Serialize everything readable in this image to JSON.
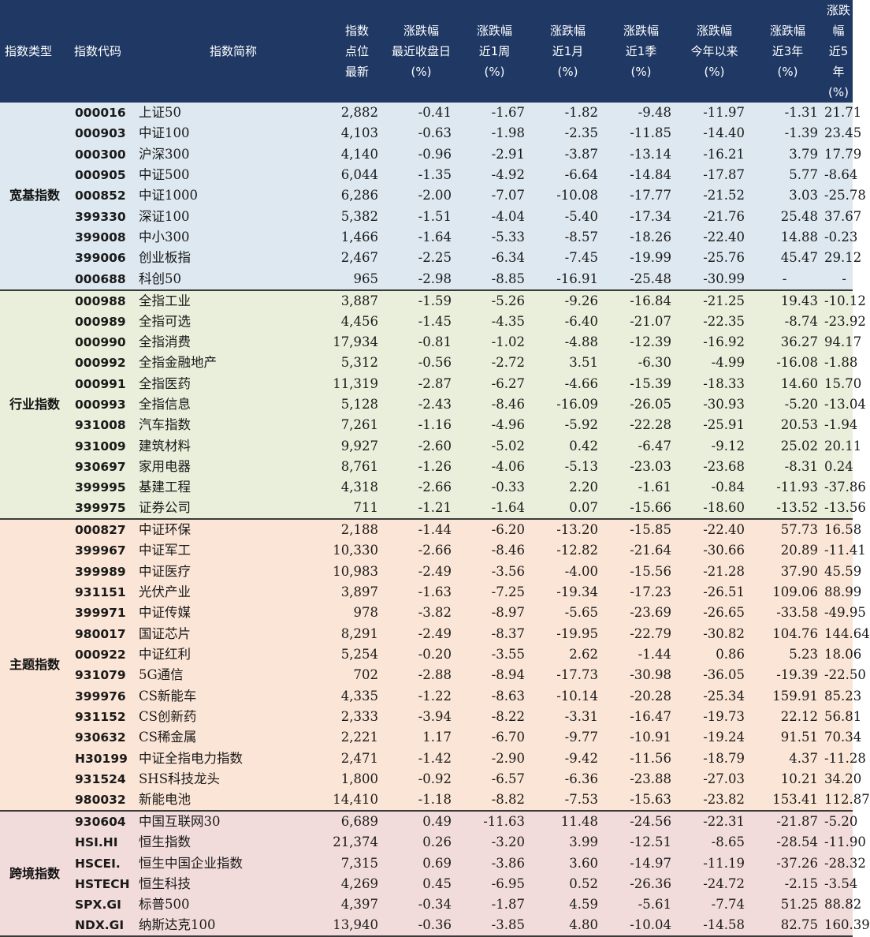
{
  "columns": [
    {
      "lines": [
        "指数类型"
      ]
    },
    {
      "lines": [
        "指数代码"
      ]
    },
    {
      "lines": [
        "指数简称"
      ]
    },
    {
      "lines": [
        "指数",
        "点位",
        "最新"
      ]
    },
    {
      "lines": [
        "涨跌幅",
        "最近收盘日",
        "(%)"
      ]
    },
    {
      "lines": [
        "涨跌幅",
        "近1周",
        "(%)"
      ]
    },
    {
      "lines": [
        "涨跌幅",
        "近1月",
        "(%)"
      ]
    },
    {
      "lines": [
        "涨跌幅",
        "近1季",
        "(%)"
      ]
    },
    {
      "lines": [
        "涨跌幅",
        "今年以来",
        "(%)"
      ]
    },
    {
      "lines": [
        "涨跌幅",
        "近3年",
        "(%)"
      ]
    },
    {
      "lines": [
        "涨跌幅",
        "近5年",
        "(%)"
      ]
    }
  ],
  "groups": [
    {
      "name": "宽基指数",
      "bg": "#dde8f0",
      "rows": [
        [
          "000016",
          "上证50",
          "2,882",
          "-0.41",
          "-1.67",
          "-1.82",
          "-9.48",
          "-11.97",
          "-1.31",
          "21.71"
        ],
        [
          "000903",
          "中证100",
          "4,103",
          "-0.63",
          "-1.98",
          "-2.35",
          "-11.85",
          "-14.40",
          "-1.39",
          "23.45"
        ],
        [
          "000300",
          "沪深300",
          "4,140",
          "-0.96",
          "-2.91",
          "-3.87",
          "-13.14",
          "-16.21",
          "3.79",
          "17.79"
        ],
        [
          "000905",
          "中证500",
          "6,044",
          "-1.35",
          "-4.92",
          "-6.64",
          "-14.84",
          "-17.87",
          "5.77",
          "-8.64"
        ],
        [
          "000852",
          "中证1000",
          "6,286",
          "-2.00",
          "-7.07",
          "-10.08",
          "-17.77",
          "-21.52",
          "3.03",
          "-25.78"
        ],
        [
          "399330",
          "深证100",
          "5,382",
          "-1.51",
          "-4.04",
          "-5.40",
          "-17.34",
          "-21.76",
          "25.48",
          "37.67"
        ],
        [
          "399008",
          "中小300",
          "1,466",
          "-1.64",
          "-5.33",
          "-8.57",
          "-18.26",
          "-22.40",
          "14.88",
          "-0.23"
        ],
        [
          "399006",
          "创业板指",
          "2,467",
          "-2.25",
          "-6.34",
          "-7.45",
          "-19.99",
          "-25.76",
          "45.47",
          "29.12"
        ],
        [
          "000688",
          "科创50",
          "965",
          "-2.98",
          "-8.85",
          "-16.91",
          "-25.48",
          "-30.99",
          "-",
          "-"
        ]
      ]
    },
    {
      "name": "行业指数",
      "bg": "#e9efdb",
      "rows": [
        [
          "000988",
          "全指工业",
          "3,887",
          "-1.59",
          "-5.26",
          "-9.26",
          "-16.84",
          "-21.25",
          "19.43",
          "-10.12"
        ],
        [
          "000989",
          "全指可选",
          "4,456",
          "-1.45",
          "-4.35",
          "-6.40",
          "-21.07",
          "-22.35",
          "-8.74",
          "-23.92"
        ],
        [
          "000990",
          "全指消费",
          "17,934",
          "-0.81",
          "-1.02",
          "-4.88",
          "-12.39",
          "-16.92",
          "36.27",
          "94.17"
        ],
        [
          "000992",
          "全指金融地产",
          "5,312",
          "-0.56",
          "-2.72",
          "3.51",
          "-6.30",
          "-4.99",
          "-16.08",
          "-1.88"
        ],
        [
          "000991",
          "全指医药",
          "11,319",
          "-2.87",
          "-6.27",
          "-4.66",
          "-15.39",
          "-18.33",
          "14.60",
          "15.70"
        ],
        [
          "000993",
          "全指信息",
          "5,128",
          "-2.43",
          "-8.46",
          "-16.09",
          "-26.05",
          "-30.93",
          "-5.20",
          "-13.04"
        ],
        [
          "931008",
          "汽车指数",
          "7,261",
          "-1.16",
          "-4.96",
          "-5.92",
          "-22.28",
          "-25.91",
          "20.53",
          "-1.94"
        ],
        [
          "931009",
          "建筑材料",
          "9,927",
          "-2.60",
          "-5.02",
          "0.42",
          "-6.47",
          "-9.12",
          "25.02",
          "20.11"
        ],
        [
          "930697",
          "家用电器",
          "8,761",
          "-1.26",
          "-4.06",
          "-5.13",
          "-23.03",
          "-23.68",
          "-8.31",
          "0.24"
        ],
        [
          "399995",
          "基建工程",
          "4,318",
          "-2.66",
          "-0.33",
          "2.20",
          "-1.61",
          "-0.84",
          "-11.93",
          "-37.86"
        ],
        [
          "399975",
          "证券公司",
          "711",
          "-1.21",
          "-1.64",
          "0.07",
          "-15.66",
          "-18.60",
          "-13.52",
          "-13.56"
        ]
      ]
    },
    {
      "name": "主题指数",
      "bg": "#fbe5d6",
      "rows": [
        [
          "000827",
          "中证环保",
          "2,188",
          "-1.44",
          "-6.20",
          "-13.20",
          "-15.85",
          "-22.40",
          "57.73",
          "16.58"
        ],
        [
          "399967",
          "中证军工",
          "10,330",
          "-2.66",
          "-8.46",
          "-12.82",
          "-21.64",
          "-30.66",
          "20.89",
          "-11.41"
        ],
        [
          "399989",
          "中证医疗",
          "10,983",
          "-2.49",
          "-3.56",
          "-4.00",
          "-15.56",
          "-21.28",
          "37.90",
          "45.59"
        ],
        [
          "931151",
          "光伏产业",
          "3,897",
          "-1.63",
          "-7.25",
          "-19.34",
          "-17.23",
          "-26.51",
          "109.06",
          "88.99"
        ],
        [
          "399971",
          "中证传媒",
          "978",
          "-3.82",
          "-8.97",
          "-5.65",
          "-23.69",
          "-26.65",
          "-33.58",
          "-49.95"
        ],
        [
          "980017",
          "国证芯片",
          "8,291",
          "-2.49",
          "-8.37",
          "-19.95",
          "-22.79",
          "-30.82",
          "104.76",
          "144.64"
        ],
        [
          "000922",
          "中证红利",
          "5,254",
          "-0.20",
          "-3.55",
          "2.62",
          "-1.44",
          "0.86",
          "5.23",
          "18.06"
        ],
        [
          "931079",
          "5G通信",
          "702",
          "-2.88",
          "-8.94",
          "-17.73",
          "-30.98",
          "-36.05",
          "-19.39",
          "-22.50"
        ],
        [
          "399976",
          "CS新能车",
          "4,335",
          "-1.22",
          "-8.63",
          "-10.14",
          "-20.28",
          "-25.34",
          "159.91",
          "85.23"
        ],
        [
          "931152",
          "CS创新药",
          "2,333",
          "-3.94",
          "-8.22",
          "-3.31",
          "-16.47",
          "-19.73",
          "22.12",
          "56.81"
        ],
        [
          "930632",
          "CS稀金属",
          "2,221",
          "1.17",
          "-6.70",
          "-9.77",
          "-10.91",
          "-19.24",
          "91.51",
          "70.34"
        ],
        [
          "H30199",
          "中证全指电力指数",
          "2,471",
          "-1.42",
          "-2.90",
          "-9.42",
          "-11.56",
          "-18.79",
          "4.37",
          "-11.28"
        ],
        [
          "931524",
          "SHS科技龙头",
          "1,800",
          "-0.92",
          "-6.57",
          "-6.36",
          "-23.88",
          "-27.03",
          "10.21",
          "34.20"
        ],
        [
          "980032",
          "新能电池",
          "14,410",
          "-1.18",
          "-8.82",
          "-7.53",
          "-15.63",
          "-23.82",
          "153.41",
          "112.87"
        ]
      ]
    },
    {
      "name": "跨境指数",
      "bg": "#f2dcdb",
      "rows": [
        [
          "930604",
          "中国互联网30",
          "6,689",
          "0.49",
          "-11.63",
          "11.48",
          "-24.56",
          "-22.31",
          "-21.87",
          "-5.20"
        ],
        [
          "HSI.HI",
          "恒生指数",
          "21,374",
          "0.26",
          "-3.20",
          "3.99",
          "-12.51",
          "-8.65",
          "-28.54",
          "-11.90"
        ],
        [
          "HSCEI.",
          "恒生中国企业指数",
          "7,315",
          "0.69",
          "-3.86",
          "3.60",
          "-14.97",
          "-11.19",
          "-37.26",
          "-28.32"
        ],
        [
          "HSTECH",
          "恒生科技",
          "4,269",
          "0.45",
          "-6.95",
          "0.52",
          "-26.36",
          "-24.72",
          "-2.15",
          "-3.54"
        ],
        [
          "SPX.GI",
          "标普500",
          "4,397",
          "-0.34",
          "-1.87",
          "4.59",
          "-5.61",
          "-7.74",
          "51.25",
          "88.82"
        ],
        [
          "NDX.GI",
          "纳斯达克100",
          "13,940",
          "-0.36",
          "-3.85",
          "4.80",
          "-10.04",
          "-14.58",
          "82.75",
          "160.39"
        ]
      ]
    }
  ]
}
